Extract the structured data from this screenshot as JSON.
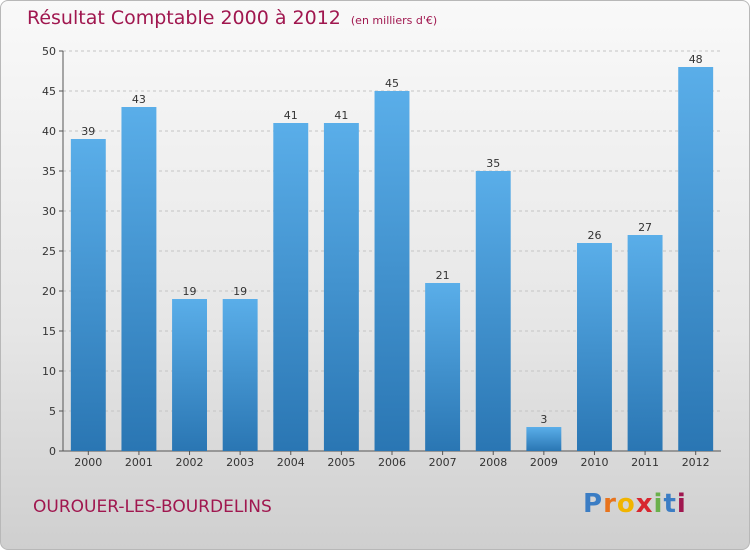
{
  "title": "Résultat Comptable 2000 à 2012",
  "subtitle": "(en milliers d'€)",
  "place_name": "OUROUER-LES-BOURDELINS",
  "logo": {
    "letters": [
      "P",
      "r",
      "o",
      "x",
      "i",
      "t",
      "i"
    ],
    "colors": [
      "#3b7dc4",
      "#e8731c",
      "#f1b400",
      "#d8262f",
      "#6ab04c",
      "#3b7dc4",
      "#a0174f"
    ]
  },
  "colors": {
    "bar_top": "#5aaee9",
    "bar_bottom": "#2a76b3",
    "title": "#a0174f"
  },
  "chart_data": {
    "type": "bar",
    "categories": [
      "2000",
      "2001",
      "2002",
      "2003",
      "2004",
      "2005",
      "2006",
      "2007",
      "2008",
      "2009",
      "2010",
      "2011",
      "2012"
    ],
    "values": [
      39,
      43,
      19,
      19,
      41,
      41,
      45,
      21,
      35,
      3,
      26,
      27,
      48
    ],
    "ylim": [
      0,
      50
    ],
    "yticks": [
      0,
      5,
      10,
      15,
      20,
      25,
      30,
      35,
      40,
      45,
      50
    ],
    "grid": "horizontal dashed",
    "legend": "none"
  }
}
